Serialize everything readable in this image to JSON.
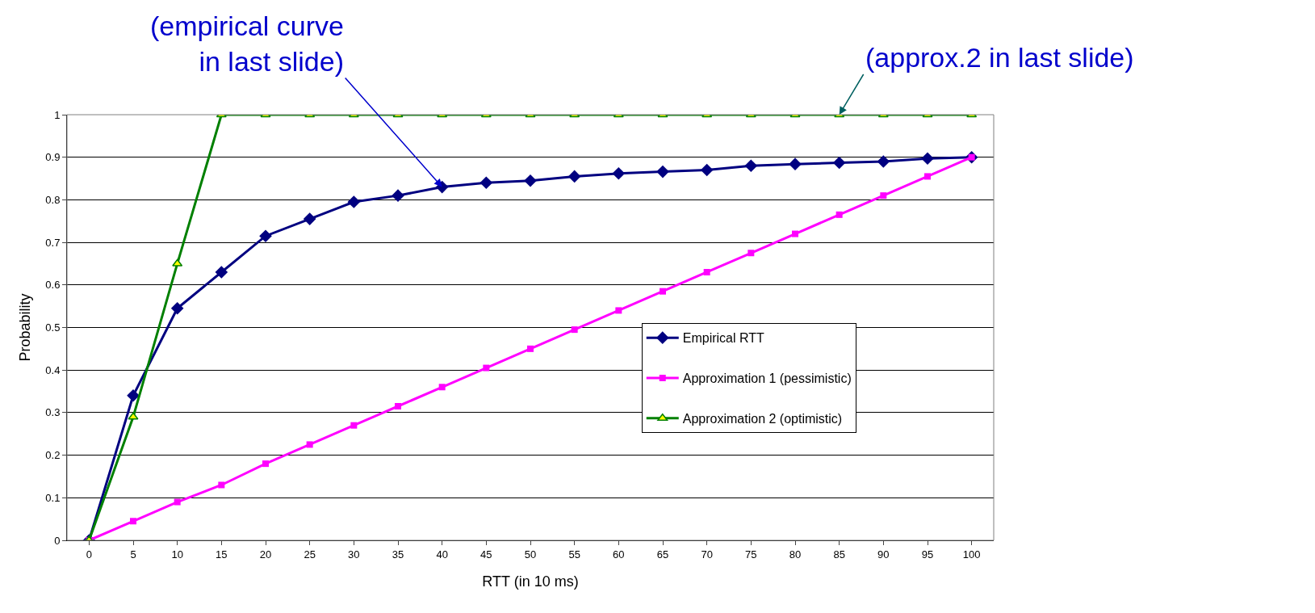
{
  "chart_data": {
    "type": "line",
    "xlabel": "RTT (in 10 ms)",
    "ylabel": "Probability",
    "categories": [
      "0",
      "5",
      "10",
      "15",
      "20",
      "25",
      "30",
      "35",
      "40",
      "45",
      "50",
      "55",
      "60",
      "65",
      "70",
      "75",
      "80",
      "85",
      "90",
      "95",
      "100"
    ],
    "series": [
      {
        "name": "Empirical RTT",
        "color": "#000080",
        "marker": "diamond",
        "values": [
          0,
          0.34,
          0.545,
          0.63,
          0.715,
          0.755,
          0.795,
          0.81,
          0.83,
          0.84,
          0.845,
          0.855,
          0.862,
          0.866,
          0.87,
          0.88,
          0.884,
          0.887,
          0.89,
          0.897,
          0.9
        ]
      },
      {
        "name": "Approximation 1 (pessimistic)",
        "color": "#ff00ff",
        "marker": "square",
        "values": [
          0,
          0.045,
          0.09,
          0.13,
          0.18,
          0.225,
          0.27,
          0.315,
          0.36,
          0.405,
          0.45,
          0.495,
          0.54,
          0.585,
          0.63,
          0.675,
          0.72,
          0.765,
          0.81,
          0.855,
          0.9
        ]
      },
      {
        "name": "Approximation 2 (optimistic)",
        "color": "#008000",
        "marker": "triangle",
        "values": [
          0,
          0.29,
          0.65,
          1,
          1,
          1,
          1,
          1,
          1,
          1,
          1,
          1,
          1,
          1,
          1,
          1,
          1,
          1,
          1,
          1,
          1
        ]
      }
    ],
    "ylim": [
      0,
      1
    ],
    "yticks": [
      0,
      0.1,
      0.2,
      0.3,
      0.4,
      0.5,
      0.6,
      0.7,
      0.8,
      0.9,
      1
    ],
    "grid": "y",
    "legend": "right",
    "line_style": "solid",
    "annotations": [
      {
        "text": "(empirical curve\nin last slide)",
        "x": "40",
        "y": 0.83
      },
      {
        "text": "(approx.2 in last slide)",
        "x": "85",
        "y": 1
      }
    ]
  }
}
